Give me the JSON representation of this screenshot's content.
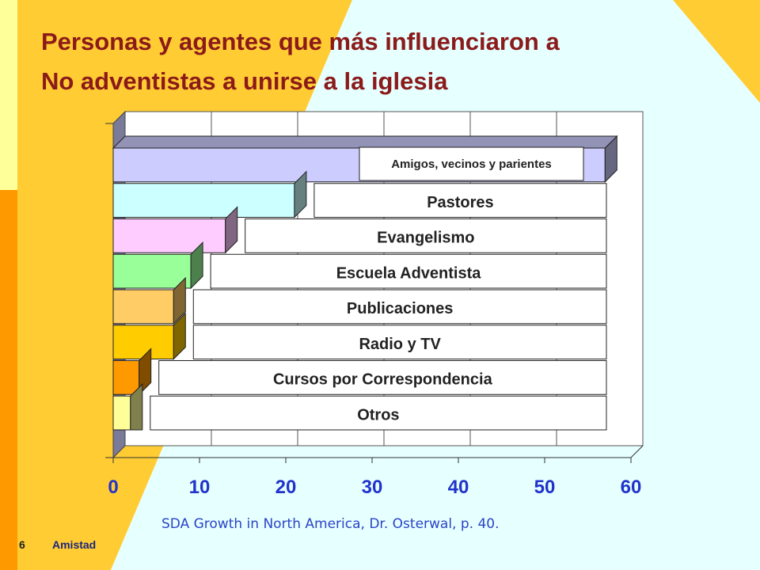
{
  "slide": {
    "title_line1": "Personas y agentes que más influenciaron  a",
    "title_line2": "No adventistas a unirse a la iglesia",
    "source": "SDA Growth in North America, Dr. Osterwal, p. 40.",
    "footer_number": "6",
    "footer_label": "Amistad"
  },
  "colors": {
    "title": "#8b1a1a",
    "source": "#2a44c8",
    "bg_yellow": "#ffcc33",
    "bg_pale_yellow": "#ffff99",
    "bg_orange": "#ff9900",
    "bg_light_cyan": "#e6ffff"
  },
  "chart_data": {
    "type": "bar",
    "orientation": "horizontal",
    "style": "3d",
    "categories": [
      "Amigos, vecinos y  parientes",
      "Pastores",
      "Evangelismo",
      "Escuela Adventista",
      "Publicaciones",
      "Radio y TV",
      "Cursos por  Correspondencia",
      "Otros"
    ],
    "values": [
      57,
      21,
      13,
      9,
      7,
      7,
      3,
      2
    ],
    "colors": [
      "#ccccff",
      "#ccffff",
      "#ffccff",
      "#99ff99",
      "#ffcc66",
      "#ffcc00",
      "#ff9900",
      "#ffff99"
    ],
    "xlim": [
      0,
      60
    ],
    "xticks": [
      "0",
      "10",
      "20",
      "30",
      "40",
      "50",
      "60"
    ],
    "grid": true,
    "legend": "none"
  }
}
